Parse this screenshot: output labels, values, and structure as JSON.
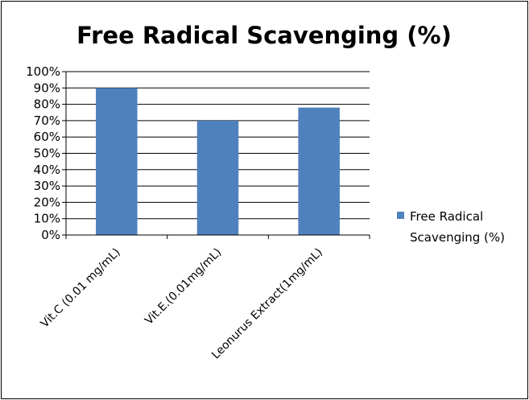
{
  "chart_data": {
    "type": "bar",
    "title": "Free Radical Scavenging (%)",
    "categories": [
      "Vit.C (0.01 mg/mL)",
      "Vit.E.(0.01mg/mL)",
      "Leonurus Extract(1mg/mL)"
    ],
    "series": [
      {
        "name": "Free Radical Scavenging (%)",
        "values": [
          90,
          70,
          78
        ],
        "color": "#4f81bd"
      }
    ],
    "y_ticks": [
      "0%",
      "10%",
      "20%",
      "30%",
      "40%",
      "50%",
      "60%",
      "70%",
      "80%",
      "90%",
      "100%"
    ],
    "ylim": [
      0,
      100
    ],
    "grid": true,
    "legend": "right",
    "legend_lines": [
      "Free Radical",
      "Scavenging (%)"
    ]
  }
}
